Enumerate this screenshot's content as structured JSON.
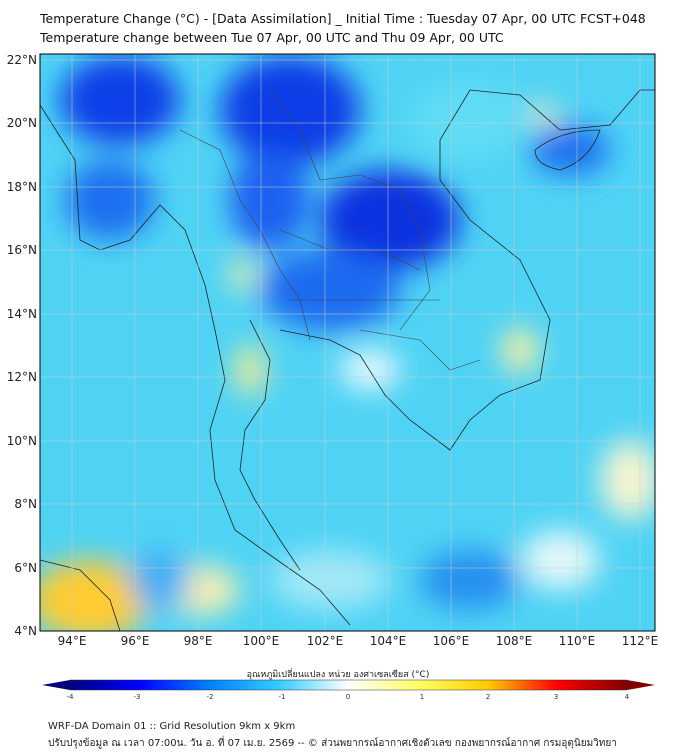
{
  "header": {
    "title": "Temperature Change (°C) - [Data Assimilation] _ Initial Time : Tuesday 07 Apr, 00 UTC FCST+048",
    "subtitle": "Temperature change between Tue 07 Apr, 00 UTC and Thu 09 Apr, 00 UTC"
  },
  "map": {
    "lon_range": [
      93,
      112.5
    ],
    "lat_range": [
      4,
      22.3
    ],
    "lon_ticks": [
      "94°E",
      "96°E",
      "98°E",
      "100°E",
      "102°E",
      "104°E",
      "106°E",
      "108°E",
      "110°E",
      "112°E"
    ],
    "lat_ticks": [
      "4°N",
      "6°N",
      "8°N",
      "10°N",
      "12°N",
      "14°N",
      "16°N",
      "18°N",
      "20°N",
      "22°N"
    ]
  },
  "colorbar": {
    "label": "อุณหภูมิเปลี่ยนแปลง หน่วย องศาเซลเซียส (°C)",
    "ticks": [
      "-4",
      "-3",
      "-2",
      "-1",
      "0",
      "1",
      "2",
      "3",
      "4"
    ],
    "range": [
      -4,
      4
    ],
    "colors": [
      "#00007f",
      "#0000ff",
      "#0080ff",
      "#33ccff",
      "#ffffff",
      "#ffff66",
      "#ffcc00",
      "#ff0000",
      "#7f0000"
    ]
  },
  "footer": {
    "line1": "WRF-DA Domain 01 :: Grid Resolution 9km x 9km",
    "line2": "ปรับปรุงข้อมูล ณ เวลา 07:00น. วัน อ. ที่ 07 เม.ย. 2569 -- © ส่วนพยากรณ์อากาศเชิงตัวเลข กองพยากรณ์อากาศ กรมอุตุนิยมวิทยา"
  }
}
